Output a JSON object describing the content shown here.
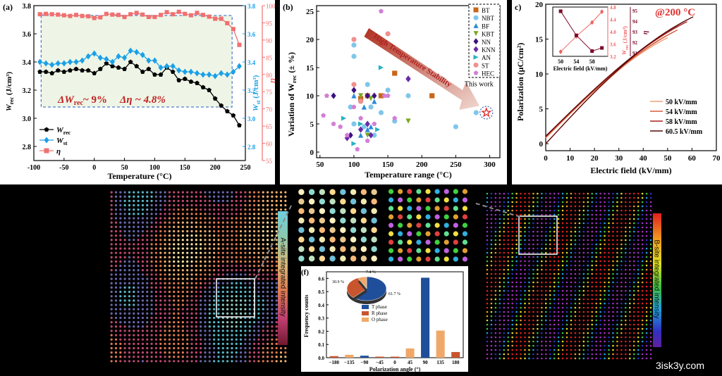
{
  "panel_a": {
    "label": "(a)",
    "annotation_w": "ΔW",
    "annotation_w_sub": "rec",
    "annotation_w_val": "~ 9%",
    "annotation_eta": "Δη ~ 4.8%",
    "legend": [
      {
        "main": "W",
        "sub": "rec"
      },
      {
        "main": "W",
        "sub": "st"
      },
      {
        "main": "η",
        "sub": ""
      }
    ]
  },
  "panel_b": {
    "label": "(b)",
    "arrow_text": "High Temperature Stability",
    "this_work": "This work"
  },
  "panel_c": {
    "label": "c)",
    "temp_label": "@200 °C",
    "inset_xlabel": "Electric field (kV/mm)",
    "inset_xticks": [
      "50",
      "54",
      "58"
    ],
    "inset_y1ticks": [
      "3.2",
      "3.6",
      "4.0",
      "4.4",
      "4.8"
    ],
    "inset_y2ticks": [
      "91",
      "92",
      "93",
      "94",
      "95"
    ],
    "inset_y1label": "W",
    "inset_y1label_sub": "rec",
    "inset_y1label_unit": "(J/cm³)",
    "inset_y2label": "η",
    "legend": [
      "50 kV/mm",
      "54 kV/mm",
      "58 kV/mm",
      "60.5 kV/mm"
    ]
  },
  "panel_bottom": {
    "a_site_label": "A-site integrated intensity",
    "b_site_label": "B-site integrated intensity"
  },
  "panel_f": {
    "label": "(f)",
    "pie_labels": [
      "61.7 %",
      "30.9 %",
      "7.4 %"
    ],
    "legend": [
      "T phase",
      "R phase",
      "O phase"
    ]
  },
  "watermark": "3isk3y.com",
  "chart_data": [
    {
      "type": "line",
      "id": "a",
      "xlabel": "Temperature (°C)",
      "ylabel": "W (J/cm³)",
      "ylabel_sub": "rec",
      "y2label": "W (J/cm³)",
      "y2label_sub": "st",
      "y3label": "η",
      "xlim": [
        -100,
        250
      ],
      "ylim": [
        2.7,
        3.8
      ],
      "y2lim": [
        2.7,
        3.8
      ],
      "y3lim": [
        55,
        100
      ],
      "xticks": [
        -100,
        -50,
        0,
        50,
        100,
        150,
        200,
        250
      ],
      "yticks": [
        2.8,
        3.0,
        3.2,
        3.4,
        3.6,
        3.8
      ],
      "y2ticks": [
        2.8,
        3.0,
        3.2,
        3.4,
        3.6,
        3.8
      ],
      "y3ticks": [
        55,
        60,
        65,
        70,
        75,
        80,
        85,
        90,
        95,
        100
      ],
      "x": [
        -90,
        -80,
        -70,
        -60,
        -50,
        -40,
        -30,
        -20,
        -10,
        0,
        10,
        20,
        30,
        40,
        50,
        60,
        70,
        80,
        90,
        100,
        110,
        120,
        130,
        140,
        150,
        160,
        170,
        180,
        190,
        200,
        210,
        220,
        230,
        240
      ],
      "series": [
        {
          "name": "W_rec",
          "axis": "left",
          "color": "#000000",
          "values": [
            3.33,
            3.33,
            3.32,
            3.34,
            3.33,
            3.34,
            3.35,
            3.34,
            3.34,
            3.32,
            3.35,
            3.39,
            3.37,
            3.36,
            3.35,
            3.4,
            3.37,
            3.33,
            3.35,
            3.31,
            3.31,
            3.36,
            3.33,
            3.27,
            3.28,
            3.26,
            3.25,
            3.22,
            3.2,
            3.14,
            3.09,
            3.05,
            3.02,
            2.95
          ]
        },
        {
          "name": "W_st",
          "axis": "left",
          "color": "#1aa0e8",
          "values": [
            3.4,
            3.39,
            3.38,
            3.39,
            3.39,
            3.4,
            3.4,
            3.41,
            3.44,
            3.46,
            3.43,
            3.42,
            3.4,
            3.44,
            3.43,
            3.48,
            3.47,
            3.45,
            3.41,
            3.41,
            3.36,
            3.37,
            3.37,
            3.34,
            3.33,
            3.33,
            3.32,
            3.31,
            3.31,
            3.3,
            3.32,
            3.31,
            3.33,
            3.37
          ]
        },
        {
          "name": "η",
          "axis": "right",
          "color": "#f07070",
          "values": [
            97.5,
            97.6,
            97.5,
            97.4,
            97.2,
            97.0,
            97.3,
            97.0,
            96.9,
            96.4,
            96.6,
            97.6,
            97.4,
            97.3,
            96.7,
            97.5,
            97.9,
            97.4,
            96.7,
            96.7,
            97.3,
            98.1,
            97.5,
            98.2,
            97.6,
            97.2,
            97.9,
            97.3,
            96.8,
            96.2,
            96.2,
            94.9,
            93.2,
            88.6
          ]
        }
      ]
    },
    {
      "type": "scatter",
      "id": "b",
      "xlabel": "Temperature range (°C)",
      "ylabel": "Variation of W (± %)",
      "ylabel_sub": "rec",
      "xlim": [
        45,
        315
      ],
      "ylim": [
        -1,
        26
      ],
      "xticks": [
        50,
        100,
        150,
        200,
        250,
        300
      ],
      "yticks": [
        0,
        5,
        10,
        15,
        20,
        25
      ],
      "series": [
        {
          "name": "BT",
          "marker": "square",
          "color": "#c8661a",
          "points": [
            [
              110,
              9.5
            ],
            [
              120,
              10
            ],
            [
              140,
              10
            ],
            [
              160,
              14
            ],
            [
              215,
              10
            ]
          ]
        },
        {
          "name": "NBT",
          "marker": "circle",
          "color": "#7fc6ea",
          "points": [
            [
              100,
              17
            ],
            [
              100,
              19
            ],
            [
              120,
              12
            ],
            [
              125,
              8
            ],
            [
              140,
              7
            ],
            [
              150,
              11
            ],
            [
              180,
              10
            ],
            [
              250,
              4.5
            ],
            [
              280,
              7
            ],
            [
              100,
              5
            ],
            [
              95,
              8
            ],
            [
              110,
              9
            ],
            [
              130,
              3
            ],
            [
              115,
              4.5
            ],
            [
              160,
              5.5
            ]
          ]
        },
        {
          "name": "BF",
          "marker": "triangle-up",
          "color": "#2b8ad6",
          "points": [
            [
              100,
              10
            ],
            [
              110,
              3
            ],
            [
              115,
              8
            ],
            [
              120,
              4
            ],
            [
              125,
              4.5
            ],
            [
              130,
              9
            ]
          ]
        },
        {
          "name": "KBT",
          "marker": "triangle-down",
          "color": "#7aa821",
          "points": [
            [
              110,
              10
            ],
            [
              125,
              9.5
            ],
            [
              180,
              5.5
            ],
            [
              120,
              3
            ]
          ]
        },
        {
          "name": "NN",
          "marker": "diamond",
          "color": "#3a1280",
          "points": [
            [
              70,
              10
            ],
            [
              100,
              11
            ],
            [
              120,
              10
            ],
            [
              130,
              10
            ],
            [
              180,
              13
            ],
            [
              95,
              3
            ]
          ]
        },
        {
          "name": "KNN",
          "marker": "diamond",
          "color": "#6a2aa8",
          "points": [
            [
              90,
              2.5
            ],
            [
              110,
              4
            ],
            [
              120,
              5
            ],
            [
              125,
              3
            ],
            [
              180,
              13
            ]
          ]
        },
        {
          "name": "AN",
          "marker": "triangle-right",
          "color": "#27b2c2",
          "points": [
            [
              85,
              6
            ],
            [
              100,
              1.5
            ],
            [
              110,
              5
            ],
            [
              135,
              4
            ],
            [
              140,
              15
            ]
          ]
        },
        {
          "name": "ST",
          "marker": "circle",
          "color": "#f09090",
          "points": [
            [
              100,
              20
            ],
            [
              100,
              12
            ],
            [
              150,
              21
            ],
            [
              110,
              9
            ]
          ]
        },
        {
          "name": "HEC",
          "marker": "pentagon",
          "color": "#d27ed6",
          "points": [
            [
              60,
              10
            ],
            [
              70,
              5
            ],
            [
              80,
              4.5
            ],
            [
              90,
              3
            ],
            [
              100,
              8
            ],
            [
              105,
              0.5
            ],
            [
              110,
              6
            ],
            [
              120,
              2
            ],
            [
              130,
              5
            ],
            [
              140,
              25
            ],
            [
              145,
              10
            ],
            [
              150,
              10
            ],
            [
              160,
              6
            ],
            [
              55,
              6.5
            ]
          ]
        }
      ],
      "this_work": [
        295,
        7
      ]
    },
    {
      "type": "line",
      "id": "c",
      "xlabel": "Electric field (kV/mm)",
      "ylabel": "Polarization (μC/cm²)",
      "xlim": [
        0,
        70
      ],
      "ylim": [
        -1,
        20
      ],
      "xticks": [
        0,
        10,
        20,
        30,
        40,
        50,
        60,
        70
      ],
      "yticks": [
        0,
        5,
        10,
        15,
        20
      ],
      "series": [
        {
          "name": "50 kV/mm",
          "color": "#f2a07a",
          "emax": 50,
          "pmax": 15.2,
          "pr": 0.8
        },
        {
          "name": "54 kV/mm",
          "color": "#d85b3a",
          "emax": 54,
          "pmax": 16.3,
          "pr": 0.9
        },
        {
          "name": "58 kV/mm",
          "color": "#a82020",
          "emax": 58,
          "pmax": 17.5,
          "pr": 1.0
        },
        {
          "name": "60.5 kV/mm",
          "color": "#5a0808",
          "emax": 60.5,
          "pmax": 18.2,
          "pr": 1.1
        }
      ],
      "inset": {
        "x": [
          50,
          54,
          58,
          60.5
        ],
        "w_rec": [
          3.35,
          3.85,
          4.3,
          4.65
        ],
        "eta": [
          94.8,
          92.5,
          91.0,
          91.3
        ],
        "w_ylim": [
          3.2,
          4.8
        ],
        "eta_ylim": [
          90.5,
          95.2
        ]
      }
    },
    {
      "type": "bar",
      "id": "f",
      "xlabel": "Polarization angle (°)",
      "ylabel": "Frequency counts",
      "categories": [
        "−180",
        "−135",
        "−90",
        "−45",
        "0",
        "45",
        "90",
        "135",
        "180"
      ],
      "ylim": [
        0,
        0.65
      ],
      "yticks": [
        0.0,
        0.1,
        0.2,
        0.3,
        0.4,
        0.5,
        0.6
      ],
      "values": [
        0.012,
        0.022,
        0.015,
        0.008,
        0.008,
        0.07,
        0.605,
        0.205,
        0.043
      ],
      "colors": [
        "#c8552e",
        "#f0a868",
        "#1f4e9a",
        "#c8552e",
        "#c8552e",
        "#f0a868",
        "#1f4e9a",
        "#f0a868",
        "#c8552e"
      ],
      "pie": {
        "values": [
          61.7,
          30.9,
          7.4
        ],
        "colors": [
          "#1f4e9a",
          "#c8552e",
          "#f0a868"
        ]
      }
    }
  ]
}
